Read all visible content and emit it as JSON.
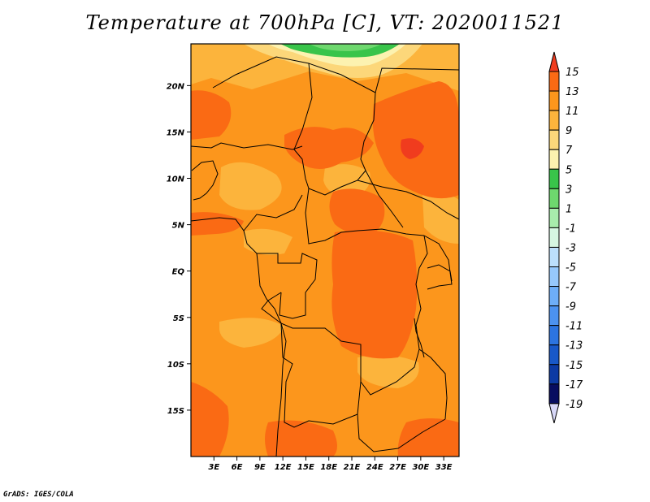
{
  "title": "Temperature at 700hPa [C], VT: 2020011521",
  "credit": "GrADS: IGES/COLA",
  "map": {
    "lon_range": [
      0,
      35
    ],
    "lat_range": [
      -20,
      24.5
    ],
    "lon_ticks": [
      {
        "value": 3,
        "label": "3E"
      },
      {
        "value": 6,
        "label": "6E"
      },
      {
        "value": 9,
        "label": "9E"
      },
      {
        "value": 12,
        "label": "12E"
      },
      {
        "value": 15,
        "label": "15E"
      },
      {
        "value": 18,
        "label": "18E"
      },
      {
        "value": 21,
        "label": "21E"
      },
      {
        "value": 24,
        "label": "24E"
      },
      {
        "value": 27,
        "label": "27E"
      },
      {
        "value": 30,
        "label": "30E"
      },
      {
        "value": 33,
        "label": "33E"
      }
    ],
    "lat_ticks": [
      {
        "value": 20,
        "label": "20N"
      },
      {
        "value": 15,
        "label": "15N"
      },
      {
        "value": 10,
        "label": "10N"
      },
      {
        "value": 5,
        "label": "5N"
      },
      {
        "value": 0,
        "label": "EQ"
      },
      {
        "value": -5,
        "label": "5S"
      },
      {
        "value": -10,
        "label": "10S"
      },
      {
        "value": -15,
        "label": "15S"
      }
    ]
  },
  "colorbar": {
    "levels": [
      "15",
      "13",
      "11",
      "9",
      "7",
      "5",
      "3",
      "1",
      "-1",
      "-3",
      "-5",
      "-7",
      "-9",
      "-11",
      "-13",
      "-15",
      "-17",
      "-19"
    ],
    "colors": [
      "#f03c1e",
      "#fa6a14",
      "#fc961c",
      "#fcb43c",
      "#fcd77a",
      "#fcf2b0",
      "#39c44a",
      "#6ed86e",
      "#a8ecac",
      "#d6f6e2",
      "#bcdffc",
      "#96c8fc",
      "#6eaef8",
      "#4c92f0",
      "#2c74e0",
      "#1858c8",
      "#0c3aa4",
      "#070d60",
      "#d8d8f8"
    ]
  }
}
